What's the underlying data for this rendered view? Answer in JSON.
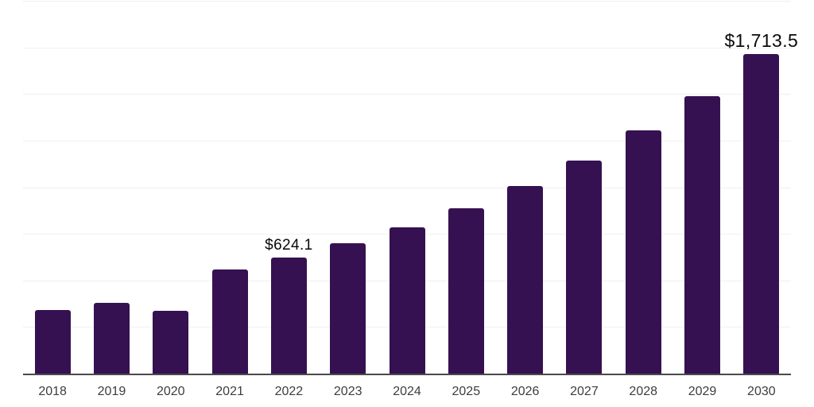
{
  "chart": {
    "colors": {
      "background": "#ffffff",
      "bar": "#351151",
      "axis_line": "#4a4a4a",
      "gridline": "#f0f0f0",
      "tick_label": "#3d3d3d",
      "data_label": "#0a0a0a"
    }
  },
  "chart_data": {
    "type": "bar",
    "title": "",
    "xlabel": "",
    "ylabel": "",
    "categories": [
      "2018",
      "2019",
      "2020",
      "2021",
      "2022",
      "2023",
      "2024",
      "2025",
      "2026",
      "2027",
      "2028",
      "2029",
      "2030"
    ],
    "values": [
      341,
      381,
      337,
      558,
      624.1,
      700,
      785,
      887,
      1005,
      1144,
      1305,
      1490,
      1713.5
    ],
    "data_labels": {
      "2022": "$624.1",
      "2030": "$1,713.5"
    },
    "ylim": [
      0,
      2000
    ],
    "grid_interval": 250,
    "grid": true,
    "y_tick_labels_visible": false,
    "legend_position": "none"
  }
}
